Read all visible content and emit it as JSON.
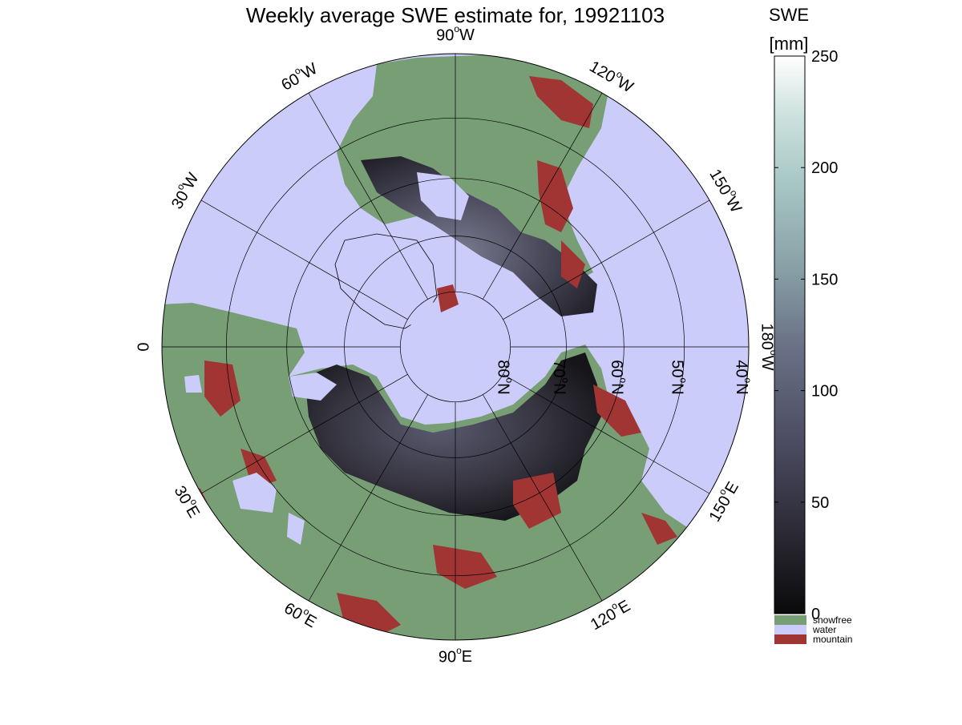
{
  "figure": {
    "title": "Weekly average SWE estimate for, 19921103"
  },
  "map": {
    "projection": "north-polar-stereographic",
    "outer_latitude_deg": 40,
    "longitude_labels": [
      {
        "lon_deg": 90,
        "text": "90",
        "suffix": "W"
      },
      {
        "lon_deg": 120,
        "text": "120",
        "suffix": "W"
      },
      {
        "lon_deg": 150,
        "text": "150",
        "suffix": "W"
      },
      {
        "lon_deg": 180,
        "text": "180",
        "suffix": "W"
      },
      {
        "lon_deg": 210,
        "text": "150",
        "suffix": "E"
      },
      {
        "lon_deg": 240,
        "text": "120",
        "suffix": "E"
      },
      {
        "lon_deg": 270,
        "text": "90",
        "suffix": "E"
      },
      {
        "lon_deg": 300,
        "text": "60",
        "suffix": "E"
      },
      {
        "lon_deg": 330,
        "text": "30",
        "suffix": "E"
      },
      {
        "lon_deg": 0,
        "text": "0",
        "suffix": ""
      },
      {
        "lon_deg": 30,
        "text": "30",
        "suffix": "W"
      },
      {
        "lon_deg": 60,
        "text": "60",
        "suffix": "W"
      }
    ],
    "latitude_labels": [
      {
        "lat_deg": 80,
        "text": "80",
        "suffix": "N"
      },
      {
        "lat_deg": 70,
        "text": "70",
        "suffix": "N"
      },
      {
        "lat_deg": 60,
        "text": "60",
        "suffix": "N"
      },
      {
        "lat_deg": 50,
        "text": "50",
        "suffix": "N"
      },
      {
        "lat_deg": 40,
        "text": "40",
        "suffix": "N"
      }
    ]
  },
  "colorbar": {
    "title_line1": "SWE",
    "title_line2": "[mm]",
    "min": 0,
    "max": 250,
    "ticks": [
      0,
      50,
      100,
      150,
      200,
      250
    ],
    "tick_labels": [
      "0",
      "50",
      "100",
      "150",
      "200",
      "250"
    ],
    "gradient_colors": [
      "#0a0a0c",
      "#2a2933",
      "#4a4a60",
      "#6a7186",
      "#88a0a6",
      "#a9c9c6",
      "#cfe3df",
      "#ffffff"
    ]
  },
  "legend": {
    "items": [
      {
        "label": "snowfree",
        "color": "#779e74"
      },
      {
        "label": "water",
        "color": "#ccccfa"
      },
      {
        "label": "mountain",
        "color": "#a03533"
      }
    ]
  },
  "colors": {
    "snowfree": "#779e74",
    "water": "#ccccfa",
    "mountain": "#a03533",
    "snow_dark": "#1b1b22",
    "snow_mid": "#4d4c5e",
    "snow_light": "#7a7b90"
  }
}
